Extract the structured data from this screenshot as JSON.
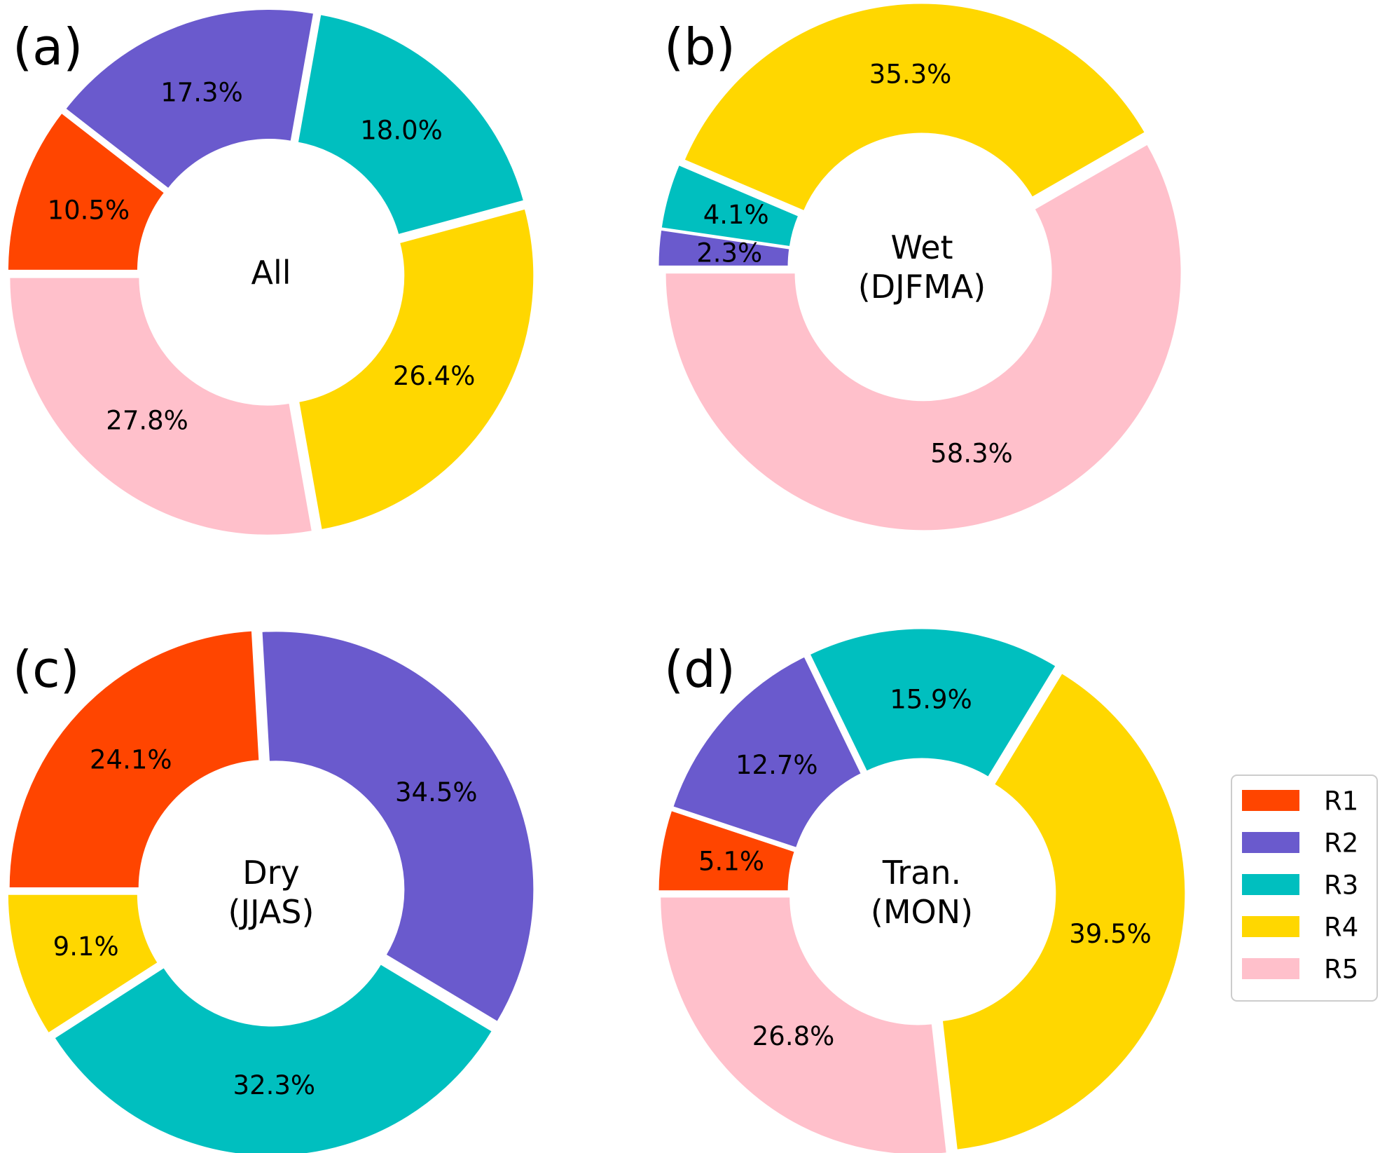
{
  "legend": {
    "items": [
      {
        "label": "R1",
        "color": "#FF4500"
      },
      {
        "label": "R2",
        "color": "#6A5ACD"
      },
      {
        "label": "R3",
        "color": "#00BFBF"
      },
      {
        "label": "R4",
        "color": "#FFD700"
      },
      {
        "label": "R5",
        "color": "#FFC0CB"
      }
    ]
  },
  "chart_data": [
    {
      "type": "pie",
      "panel": "(a)",
      "center_label": [
        "All"
      ],
      "categories": [
        "R1",
        "R2",
        "R3",
        "R4",
        "R5"
      ],
      "values": [
        10.5,
        17.3,
        18.0,
        26.4,
        27.8
      ],
      "labels": [
        "10.5%",
        "17.3%",
        "18.0%",
        "26.4%",
        "27.8%"
      ]
    },
    {
      "type": "pie",
      "panel": "(b)",
      "center_label": [
        "Wet",
        "(DJFMA)"
      ],
      "categories": [
        "R2",
        "R3",
        "R4",
        "R5"
      ],
      "values": [
        2.3,
        4.1,
        35.3,
        58.3
      ],
      "labels": [
        "2.3%",
        "4.1%",
        "35.3%",
        "58.3%"
      ]
    },
    {
      "type": "pie",
      "panel": "(c)",
      "center_label": [
        "Dry",
        "(JJAS)"
      ],
      "categories": [
        "R1",
        "R2",
        "R3",
        "R4"
      ],
      "values": [
        24.1,
        34.5,
        32.3,
        9.1
      ],
      "labels": [
        "24.1%",
        "34.5%",
        "32.3%",
        "9.1%"
      ]
    },
    {
      "type": "pie",
      "panel": "(d)",
      "center_label": [
        "Tran.",
        "(MON)"
      ],
      "categories": [
        "R1",
        "R2",
        "R3",
        "R4",
        "R5"
      ],
      "values": [
        5.1,
        12.7,
        15.9,
        39.5,
        26.8
      ],
      "labels": [
        "5.1%",
        "12.7%",
        "15.9%",
        "39.5%",
        "26.8%"
      ]
    }
  ]
}
